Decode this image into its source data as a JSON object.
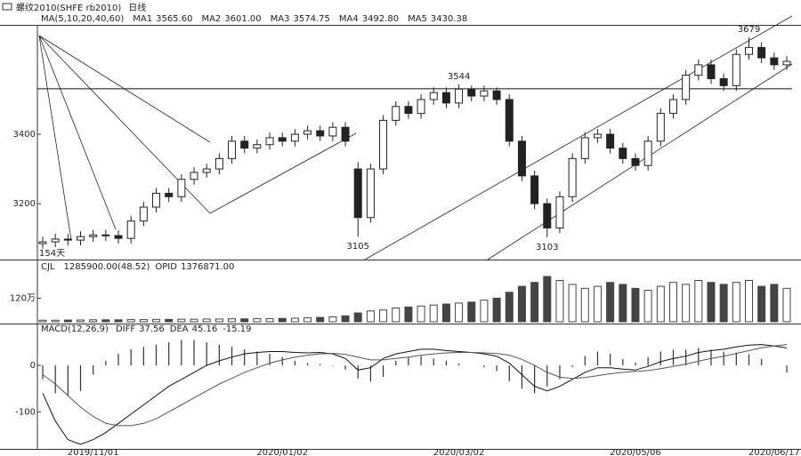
{
  "chart_data": [
    {
      "type": "candlestick",
      "title": "螺纹2010(SHFE rb2010)",
      "period": "日线",
      "indicator": "MA(5,10,20,40,60)",
      "legend": [
        {
          "name": "MA1",
          "value": 3565.6,
          "label": "3565.60"
        },
        {
          "name": "MA2",
          "value": 3601,
          "label": "3601.00"
        },
        {
          "name": "MA3",
          "value": 3574.75,
          "label": "3574.75"
        },
        {
          "name": "MA4",
          "value": 3492.8,
          "label": "3492.80"
        },
        {
          "name": "MA5",
          "value": 3430.38,
          "label": "3430.38"
        }
      ],
      "annotation": "154天",
      "categories": [
        null,
        null,
        null,
        null,
        "2019/11/01",
        null,
        null,
        null,
        null,
        null,
        null,
        null,
        null,
        null,
        null,
        null,
        null,
        null,
        null,
        "2020/01/02",
        null,
        null,
        null,
        null,
        null,
        null,
        null,
        null,
        null,
        null,
        null,
        null,
        null,
        "2020/03/02",
        null,
        null,
        null,
        null,
        null,
        null,
        null,
        null,
        null,
        null,
        null,
        null,
        null,
        "2020/05/06",
        null,
        null,
        null,
        null,
        null,
        null,
        null,
        null,
        null,
        null,
        "2020/06/17",
        null
      ],
      "open": [
        3085,
        3090,
        3098,
        3095,
        3105,
        3110,
        3108,
        3100,
        3150,
        3190,
        3230,
        3220,
        3270,
        3290,
        3300,
        3330,
        3380,
        3360,
        3370,
        3390,
        3380,
        3400,
        3410,
        3395,
        3420,
        3300,
        3160,
        3300,
        3440,
        3480,
        3460,
        3500,
        3520,
        3490,
        3530,
        3510,
        3525,
        3500,
        3380,
        3280,
        3200,
        3130,
        3220,
        3330,
        3390,
        3400,
        3360,
        3330,
        3310,
        3380,
        3460,
        3500,
        3570,
        3600,
        3560,
        3540,
        3630,
        3650,
        3620,
        3600
      ],
      "high": [
        3105,
        3113,
        3113,
        3120,
        3125,
        3125,
        3123,
        3165,
        3205,
        3245,
        3245,
        3285,
        3305,
        3315,
        3345,
        3395,
        3395,
        3385,
        3405,
        3405,
        3415,
        3425,
        3425,
        3435,
        3435,
        3320,
        3315,
        3455,
        3495,
        3495,
        3515,
        3535,
        3535,
        3544,
        3540,
        3540,
        3535,
        3515,
        3395,
        3295,
        3215,
        3235,
        3345,
        3405,
        3415,
        3415,
        3375,
        3345,
        3395,
        3475,
        3515,
        3585,
        3615,
        3615,
        3575,
        3645,
        3679,
        3665,
        3635,
        3625
      ],
      "low": [
        3070,
        3075,
        3080,
        3080,
        3090,
        3093,
        3085,
        3085,
        3135,
        3175,
        3205,
        3205,
        3255,
        3275,
        3285,
        3315,
        3345,
        3345,
        3355,
        3365,
        3365,
        3385,
        3380,
        3380,
        3365,
        3105,
        3145,
        3285,
        3425,
        3445,
        3445,
        3485,
        3475,
        3475,
        3495,
        3495,
        3485,
        3365,
        3265,
        3185,
        3103,
        3115,
        3205,
        3315,
        3375,
        3345,
        3315,
        3295,
        3295,
        3365,
        3445,
        3485,
        3555,
        3545,
        3525,
        3525,
        3615,
        3605,
        3585,
        3585
      ],
      "close": [
        3090,
        3098,
        3095,
        3105,
        3110,
        3108,
        3100,
        3150,
        3190,
        3230,
        3220,
        3270,
        3290,
        3300,
        3330,
        3380,
        3360,
        3370,
        3390,
        3380,
        3400,
        3410,
        3395,
        3420,
        3380,
        3160,
        3300,
        3440,
        3480,
        3460,
        3500,
        3520,
        3490,
        3530,
        3510,
        3525,
        3500,
        3380,
        3280,
        3200,
        3130,
        3220,
        3330,
        3390,
        3400,
        3360,
        3330,
        3310,
        3380,
        3460,
        3500,
        3570,
        3600,
        3560,
        3540,
        3630,
        3650,
        3620,
        3600,
        3610
      ],
      "marked_highs": [
        33,
        56
      ],
      "marked_lows": [
        25,
        40
      ],
      "hline": 3531,
      "ylim": [
        3039,
        3715
      ],
      "yticks": [
        3200,
        3400
      ],
      "color": "#222222"
    },
    {
      "type": "bar",
      "indicator": "CJL",
      "readout": "1285900.00(48.52)",
      "oi_name": "OPID",
      "oi_value": "1376871.00",
      "values": [
        8,
        8,
        9,
        9,
        10,
        10,
        10,
        11,
        11,
        12,
        12,
        13,
        13,
        14,
        14,
        15,
        15,
        16,
        16,
        17,
        18,
        20,
        22,
        25,
        30,
        45,
        55,
        60,
        70,
        75,
        80,
        85,
        90,
        95,
        100,
        110,
        120,
        150,
        180,
        200,
        230,
        210,
        190,
        170,
        180,
        200,
        190,
        170,
        160,
        180,
        200,
        190,
        210,
        200,
        190,
        200,
        210,
        180,
        190,
        170
      ],
      "ylim": [
        0,
        280
      ],
      "yticks": [
        {
          "value": 120,
          "label": "120万"
        }
      ],
      "color": "#444444"
    },
    {
      "type": "macd",
      "indicator": "MACD(12,26,9)",
      "values": [
        -30,
        -60,
        -65,
        -55,
        -20,
        10,
        25,
        35,
        40,
        45,
        50,
        55,
        55,
        50,
        45,
        40,
        35,
        30,
        25,
        18,
        10,
        5,
        3,
        -1,
        -9,
        -28,
        -35,
        -25,
        10,
        18,
        20,
        15,
        10,
        4,
        0,
        -4,
        -12,
        -34,
        -50,
        -60,
        -45,
        -30,
        -4,
        20,
        30,
        25,
        14,
        6,
        18,
        30,
        34,
        34,
        38,
        34,
        30,
        28,
        24,
        14,
        0,
        -15.19
      ],
      "series": [
        {
          "name": "DIFF",
          "color": "#111111",
          "values": [
            -60,
            -120,
            -160,
            -170,
            -160,
            -145,
            -125,
            -105,
            -85,
            -65,
            -45,
            -30,
            -15,
            0,
            10,
            18,
            25,
            28,
            30,
            30,
            28,
            27,
            28,
            25,
            15,
            -10,
            -5,
            15,
            25,
            30,
            35,
            35,
            32,
            30,
            28,
            25,
            20,
            5,
            -20,
            -45,
            -55,
            -45,
            -30,
            -15,
            -5,
            -5,
            -8,
            -10,
            -2,
            8,
            15,
            20,
            28,
            32,
            35,
            40,
            44,
            45,
            42,
            37.56
          ]
        },
        {
          "name": "DEA",
          "color": "#555555",
          "values": [
            -20,
            -40,
            -65,
            -90,
            -110,
            -125,
            -130,
            -130,
            -125,
            -115,
            -100,
            -85,
            -70,
            -55,
            -40,
            -28,
            -15,
            -5,
            5,
            12,
            18,
            22,
            25,
            26,
            24,
            18,
            12,
            12,
            15,
            18,
            22,
            25,
            27,
            28,
            28,
            27,
            26,
            22,
            13,
            0,
            -15,
            -25,
            -28,
            -26,
            -22,
            -18,
            -15,
            -13,
            -11,
            -7,
            -2,
            3,
            9,
            15,
            20,
            26,
            32,
            38,
            42,
            45.16
          ]
        }
      ],
      "ylim": [
        -180,
        75
      ],
      "yticks": [
        0,
        -100
      ]
    }
  ]
}
